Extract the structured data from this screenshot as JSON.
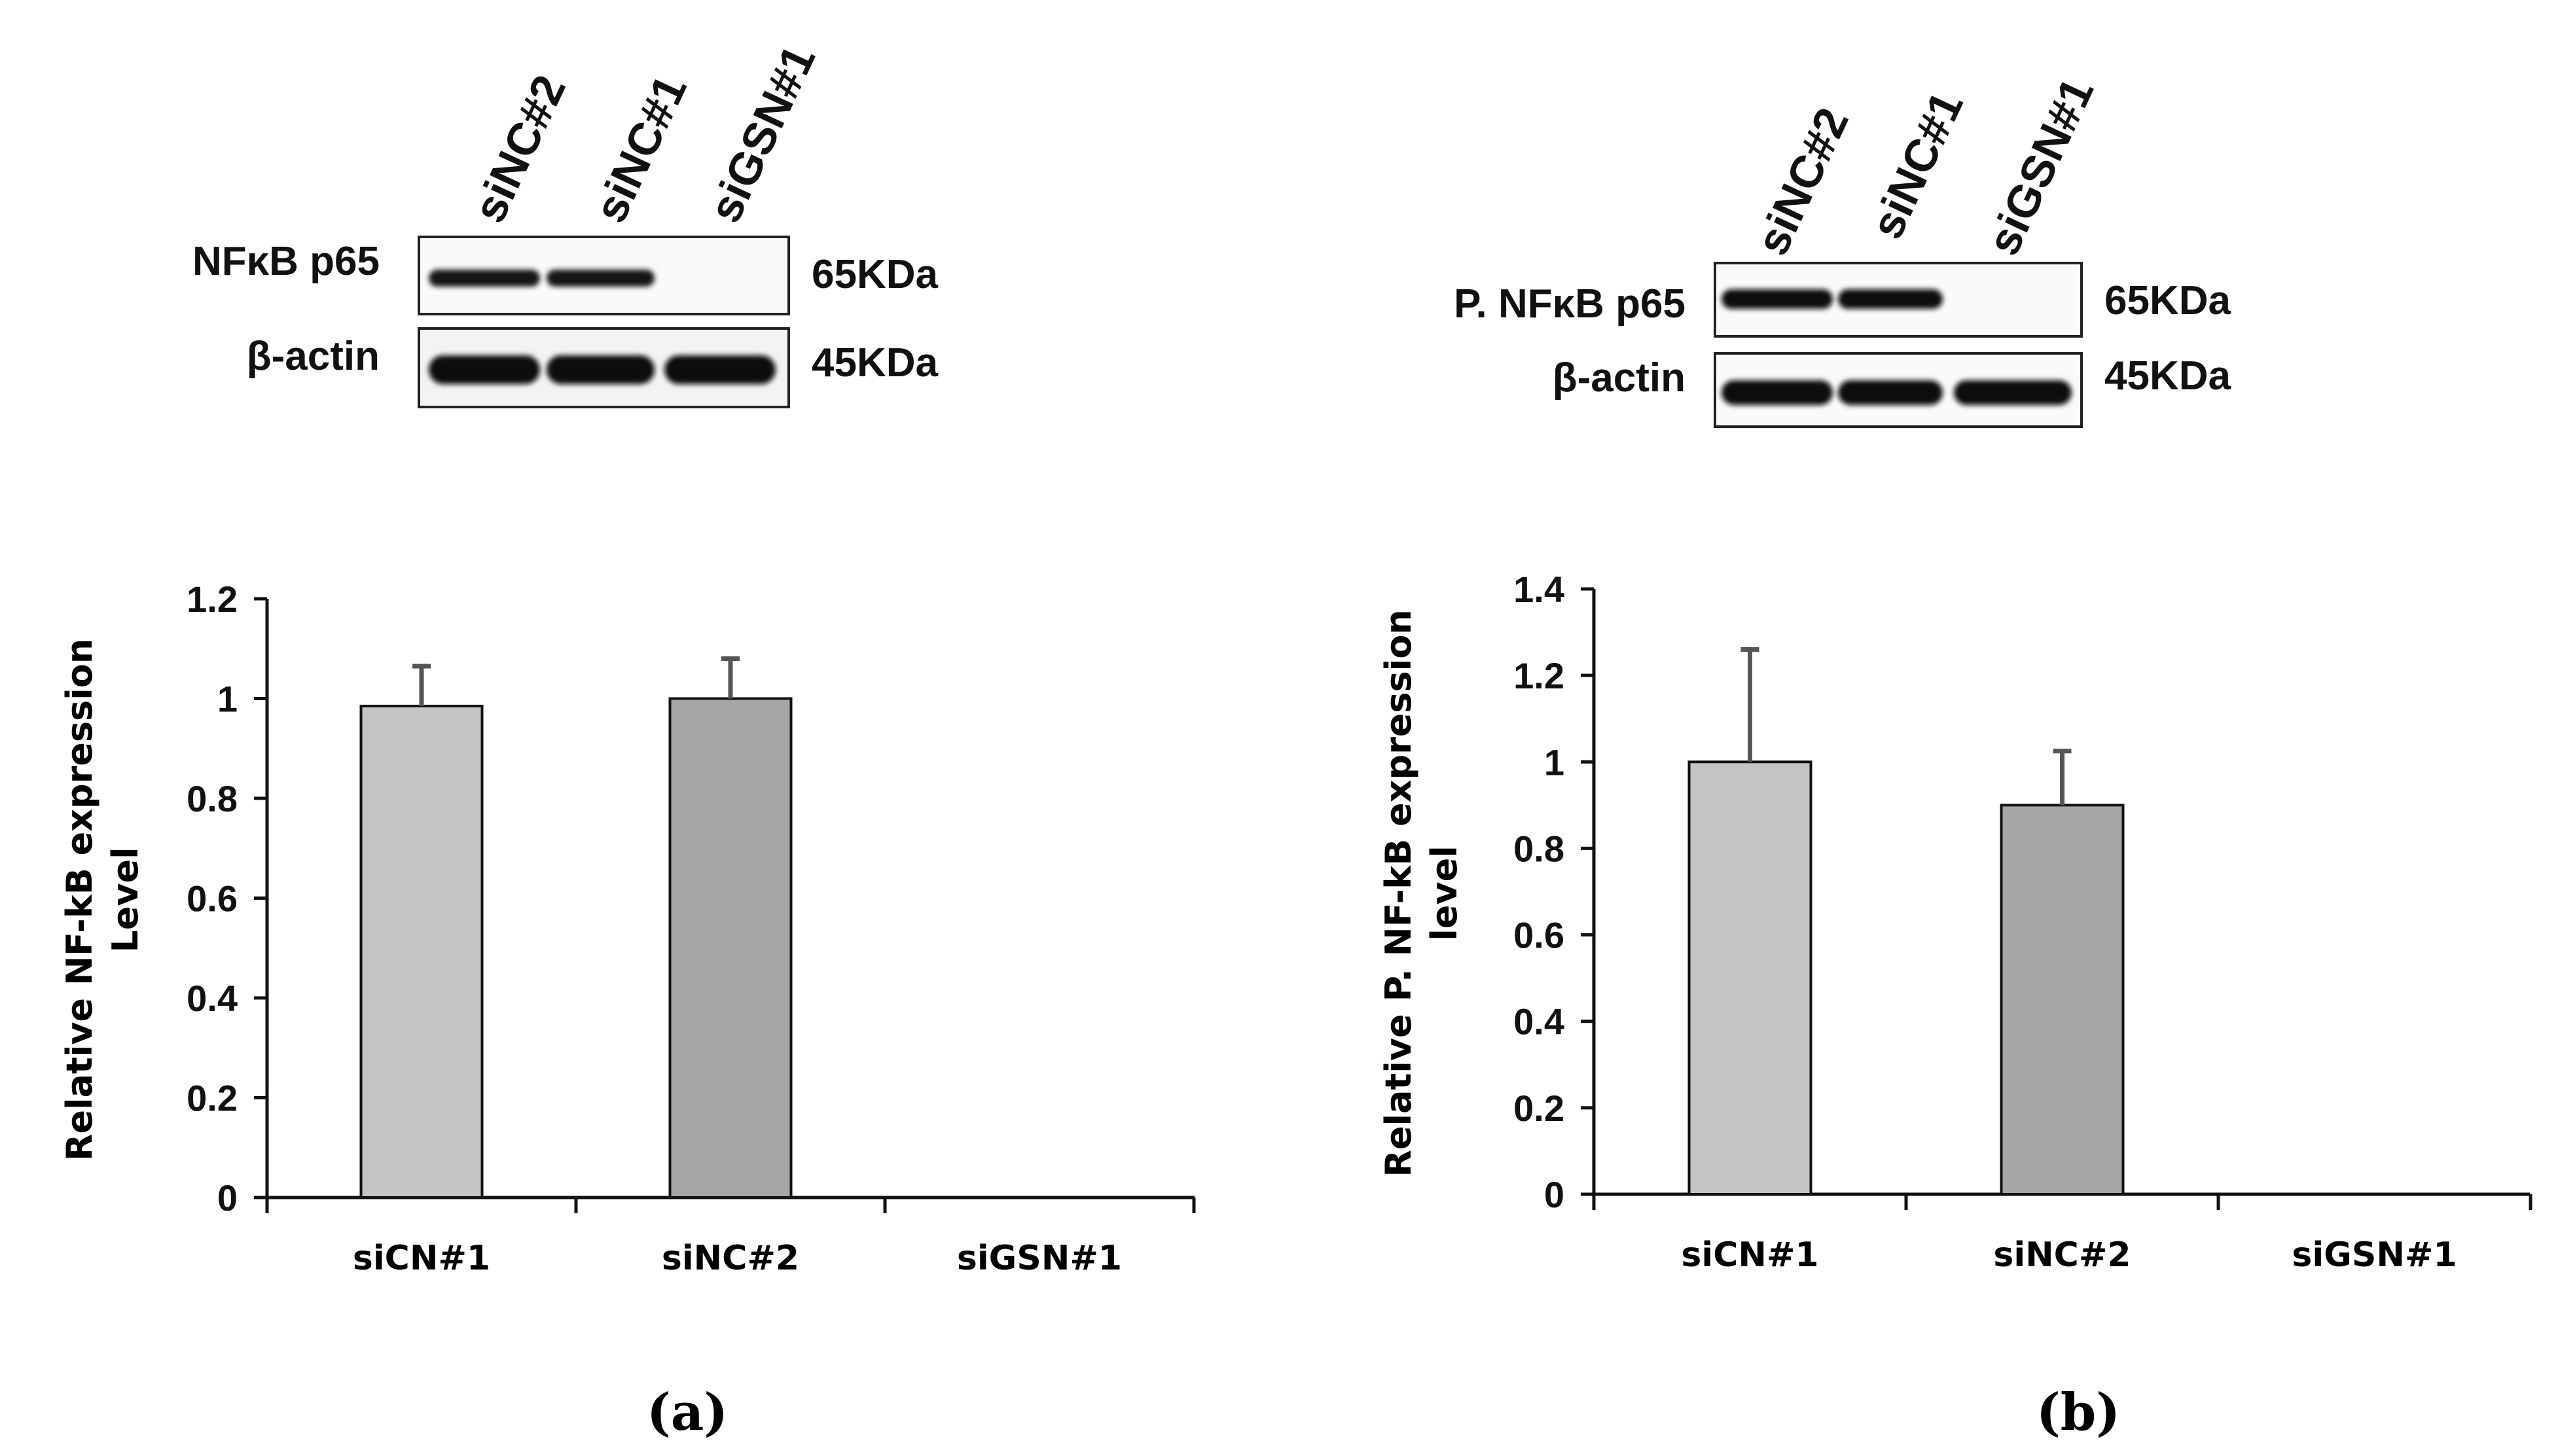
{
  "panels": [
    {
      "caption": "(a)",
      "blot": {
        "lanes": [
          "siNC#2",
          "siNC#1",
          "siGSN#1"
        ],
        "rows": [
          {
            "protein": "NFκB p65",
            "size": "65KDa",
            "intensity": [
              0.85,
              0.8,
              0.0
            ]
          },
          {
            "protein": "β-actin",
            "size": "45KDa",
            "intensity": [
              1.0,
              1.0,
              0.95
            ]
          }
        ]
      }
    },
    {
      "caption": "(b)",
      "blot": {
        "lanes": [
          "siNC#2",
          "siNC#1",
          "siGSN#1"
        ],
        "rows": [
          {
            "protein": "P. NFκB p65",
            "size": "65KDa",
            "intensity": [
              0.95,
              0.95,
              0.0
            ]
          },
          {
            "protein": "β-actin",
            "size": "45KDa",
            "intensity": [
              0.95,
              0.95,
              0.95
            ]
          }
        ]
      }
    }
  ],
  "chart_data": [
    {
      "type": "bar",
      "categories": [
        "siCN#1",
        "siNC#2",
        "siGSN#1"
      ],
      "values": [
        0.985,
        1.0,
        0.0
      ],
      "errors": [
        0.08,
        0.08,
        0.0
      ],
      "ylabel": [
        "Relative NF-kB expression",
        "Level"
      ],
      "ylim": [
        0,
        1.2
      ],
      "yticks": [
        "0",
        "0.2",
        "0.4",
        "0.6",
        "0.8",
        "1",
        "1.2"
      ],
      "bar_colors": [
        "#c4c4c4",
        "#a6a6a6",
        "#a6a6a6"
      ],
      "grid": false,
      "legend": "none"
    },
    {
      "type": "bar",
      "categories": [
        "siCN#1",
        "siNC#2",
        "siGSN#1"
      ],
      "values": [
        1.0,
        0.9,
        0.0
      ],
      "errors": [
        0.26,
        0.125,
        0.0
      ],
      "ylabel": [
        "Relative P. NF-kB expression",
        "level"
      ],
      "ylim": [
        0,
        1.4
      ],
      "yticks": [
        "0",
        "0.2",
        "0.4",
        "0.6",
        "0.8",
        "1",
        "1.2",
        "1.4"
      ],
      "bar_colors": [
        "#c4c4c4",
        "#a6a6a6",
        "#a6a6a6"
      ],
      "grid": false,
      "legend": "none"
    }
  ]
}
